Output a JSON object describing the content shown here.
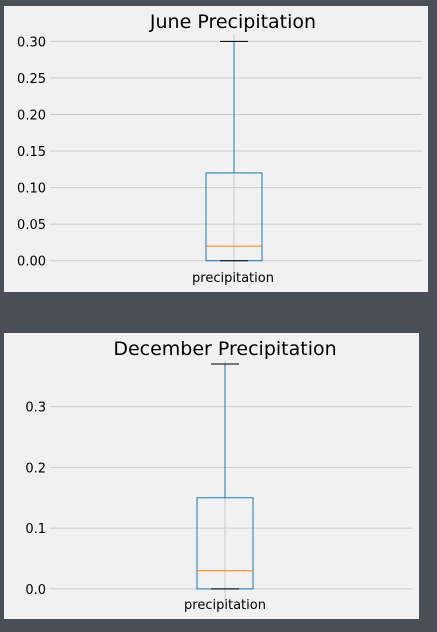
{
  "colors": {
    "background": "#4a4f57",
    "panel": "#f1f1f1",
    "grid": "#cccccc",
    "box": "#1f77b4",
    "median": "#ff7f0e",
    "cap": "#000000"
  },
  "chart_data": [
    {
      "type": "box",
      "title": "June Precipitation",
      "categories": [
        "precipitation"
      ],
      "yticks": [
        "0.00",
        "0.05",
        "0.10",
        "0.15",
        "0.20",
        "0.25",
        "0.30"
      ],
      "ylim": [
        -0.01,
        0.31
      ],
      "grid": true,
      "box": {
        "min": 0.0,
        "q1": 0.0,
        "median": 0.02,
        "q3": 0.12,
        "max": 0.3
      }
    },
    {
      "type": "box",
      "title": "December Precipitation",
      "categories": [
        "precipitation"
      ],
      "yticks": [
        "0.0",
        "0.1",
        "0.2",
        "0.3"
      ],
      "ylim": [
        -0.01,
        0.375
      ],
      "grid": true,
      "box": {
        "min": 0.0,
        "q1": 0.0,
        "median": 0.03,
        "q3": 0.15,
        "max": 0.37
      }
    }
  ]
}
